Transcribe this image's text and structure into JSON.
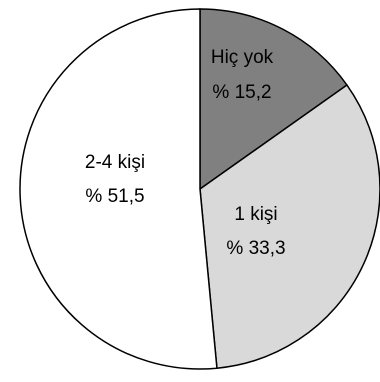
{
  "chart_data": {
    "type": "pie",
    "title": "",
    "start_angle_deg": 0,
    "direction": "clockwise",
    "slices": [
      {
        "label": "Hiç yok",
        "value_label": "% 15,2",
        "value": 15.2,
        "color": "#808080"
      },
      {
        "label": "1 kişi",
        "value_label": "% 33,3",
        "value": 33.3,
        "color": "#d9d9d9"
      },
      {
        "label": "2-4 kişi",
        "value_label": "% 51,5",
        "value": 51.5,
        "color": "#ffffff"
      }
    ]
  }
}
